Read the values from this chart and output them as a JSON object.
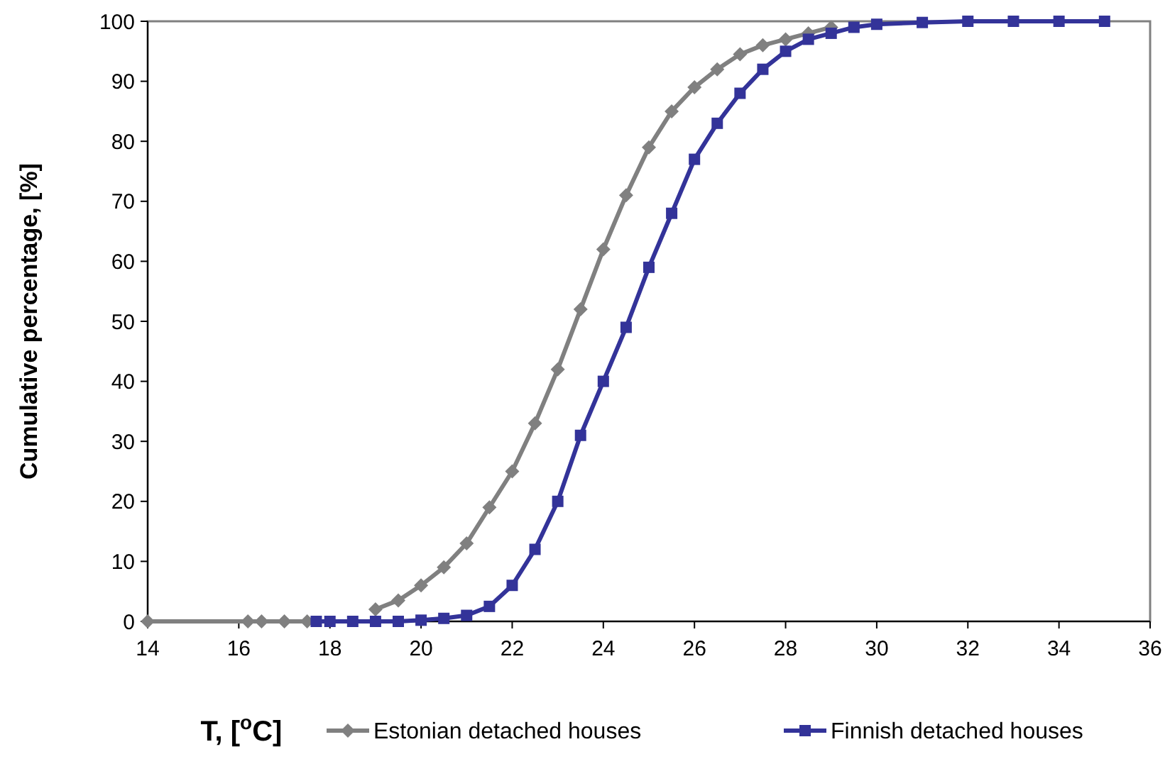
{
  "chart_data": {
    "type": "line",
    "xlabel": "T, [$^{o}$C]",
    "ylabel": "Cumulative percentage, [%]",
    "xlim": [
      14,
      36
    ],
    "xticks": [
      14,
      16,
      18,
      20,
      22,
      24,
      26,
      28,
      30,
      32,
      34,
      36
    ],
    "ylim": [
      0,
      100
    ],
    "yticks": [
      0,
      10,
      20,
      30,
      40,
      50,
      60,
      70,
      80,
      90,
      100
    ],
    "grid": false,
    "legend": "bottom",
    "series": [
      {
        "name": "Estonian detached houses",
        "color": "#808080",
        "marker": "diamond",
        "x": [
          14,
          16.2,
          16.5,
          17,
          17.5,
          18,
          18.5,
          19,
          19.5,
          20,
          20.5,
          21,
          21.5,
          22,
          22.5,
          23,
          23.5,
          24,
          24.5,
          25,
          25.5,
          26,
          26.5,
          27,
          27.5,
          28,
          28.5,
          29
        ],
        "values": [
          0,
          0,
          0,
          0,
          0,
          null,
          null,
          2,
          3.5,
          6,
          9,
          13,
          19,
          25,
          33,
          42,
          52,
          62,
          71,
          79,
          85,
          89,
          92,
          94.5,
          96,
          97,
          98,
          99
        ]
      },
      {
        "name": "Finnish detached houses",
        "color": "#333399",
        "marker": "square",
        "x": [
          17.7,
          18,
          18.5,
          19,
          19.5,
          20,
          20.5,
          21,
          21.5,
          22,
          22.5,
          23,
          23.5,
          24,
          24.5,
          25,
          25.5,
          26,
          26.5,
          27,
          27.5,
          28,
          28.5,
          29,
          29.5,
          30,
          31,
          32,
          33,
          34,
          35
        ],
        "values": [
          0,
          0,
          0,
          0,
          0,
          0.2,
          0.5,
          1,
          2.5,
          6,
          12,
          20,
          31,
          40,
          49,
          59,
          68,
          77,
          83,
          88,
          92,
          95,
          97,
          98,
          99,
          99.5,
          99.8,
          100,
          100,
          100,
          100
        ]
      }
    ]
  }
}
